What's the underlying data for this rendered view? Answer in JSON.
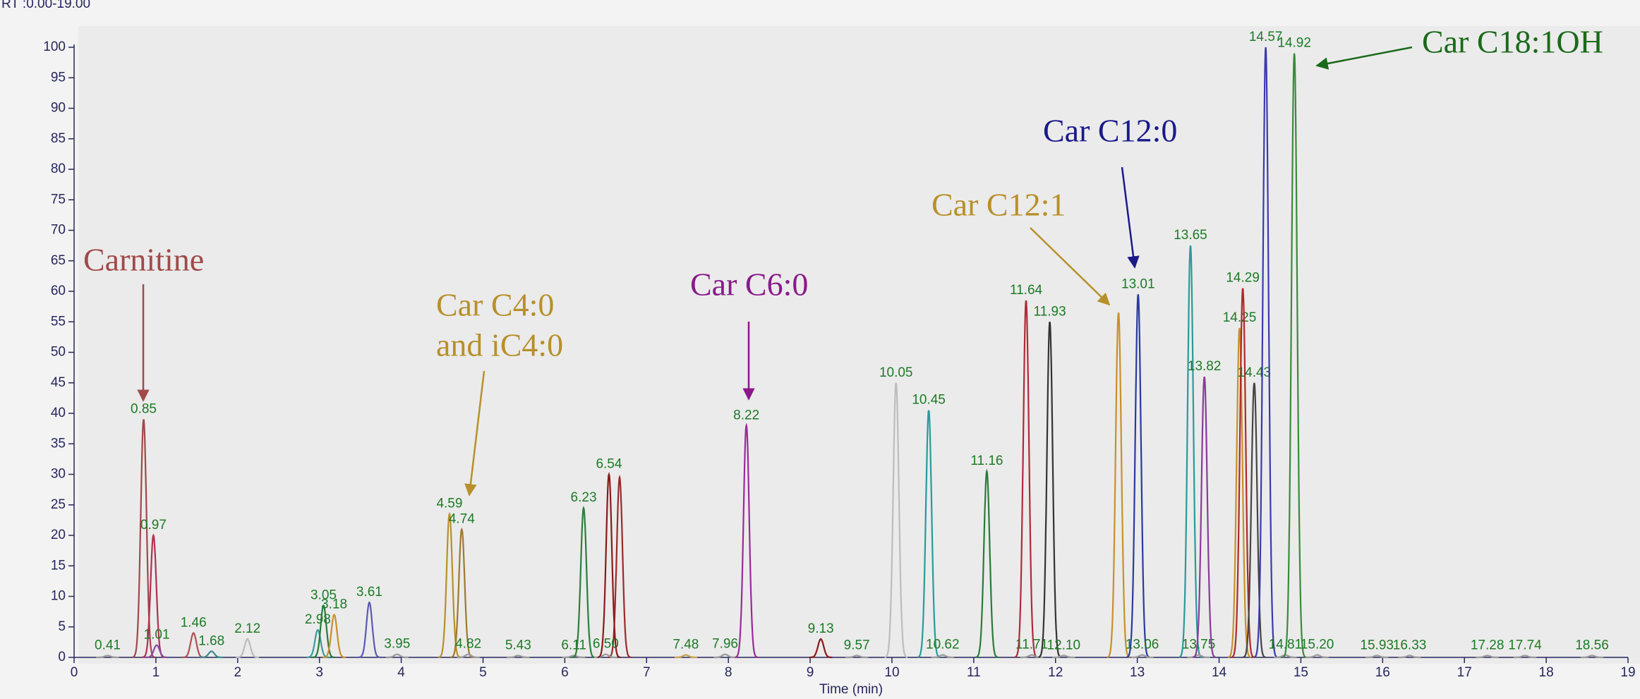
{
  "chart_data": {
    "type": "chromatogram",
    "range_label": "RT :0.00-19.00",
    "x_label": "Time (min)",
    "xlim": [
      0,
      19
    ],
    "xticks": [
      0,
      1,
      2,
      3,
      4,
      5,
      6,
      7,
      8,
      9,
      10,
      11,
      12,
      13,
      14,
      15,
      16,
      17,
      18,
      19
    ],
    "ylim": [
      0,
      100
    ],
    "yticks": [
      0,
      5,
      10,
      15,
      20,
      25,
      30,
      35,
      40,
      45,
      50,
      55,
      60,
      65,
      70,
      75,
      80,
      85,
      90,
      95,
      100
    ],
    "peaks": [
      {
        "rt": 0.41,
        "height": 0.3,
        "color": "#999999"
      },
      {
        "rt": 0.85,
        "height": 39,
        "color": "#a04848"
      },
      {
        "rt": 0.97,
        "height": 20,
        "color": "#b03050"
      },
      {
        "rt": 1.01,
        "height": 2,
        "color": "#8a4aa0"
      },
      {
        "rt": 1.46,
        "height": 4,
        "color": "#b05050"
      },
      {
        "rt": 1.68,
        "height": 1,
        "color": "#3a8a8a"
      },
      {
        "rt": 2.12,
        "height": 3,
        "color": "#bbbbbb"
      },
      {
        "rt": 2.98,
        "height": 4.5,
        "color": "#3a9a9a"
      },
      {
        "rt": 3.05,
        "height": 8.5,
        "color": "#2a7a3a"
      },
      {
        "rt": 3.18,
        "height": 7,
        "color": "#c8902a"
      },
      {
        "rt": 3.61,
        "height": 9,
        "color": "#5a5ab0"
      },
      {
        "rt": 3.95,
        "height": 0.5,
        "color": "#999999"
      },
      {
        "rt": 4.59,
        "height": 23.5,
        "color": "#b8902a"
      },
      {
        "rt": 4.74,
        "height": 21,
        "color": "#a07830"
      },
      {
        "rt": 4.82,
        "height": 0.5,
        "color": "#999999"
      },
      {
        "rt": 5.43,
        "height": 0.3,
        "color": "#999999"
      },
      {
        "rt": 6.11,
        "height": 0.3,
        "color": "#999999"
      },
      {
        "rt": 6.23,
        "height": 24.5,
        "color": "#2e7d3e"
      },
      {
        "rt": {
          "value": 6.5,
          "label": "6.50"
        },
        "height": 0.5,
        "color": "#999999"
      },
      {
        "rt": 6.54,
        "height": 30,
        "color": "#8a1a1a"
      },
      {
        "rt": 7.48,
        "height": 0.4,
        "color": "#c8a050"
      },
      {
        "rt": 7.96,
        "height": 0.5,
        "color": "#999999"
      },
      {
        "rt": 8.22,
        "height": 38,
        "color": "#9a2a9a"
      },
      {
        "rt": 9.13,
        "height": 3,
        "color": "#8a1a1a"
      },
      {
        "rt": 9.57,
        "height": 0.3,
        "color": "#999999"
      },
      {
        "rt": 10.05,
        "height": 45,
        "color": "#bdbdbd"
      },
      {
        "rt": 10.45,
        "height": 40.5,
        "color": "#2a9a9a"
      },
      {
        "rt": 10.62,
        "height": 0.4,
        "color": "#999999"
      },
      {
        "rt": 11.16,
        "height": 30.5,
        "color": "#2a7a3a"
      },
      {
        "rt": 11.64,
        "height": 58.5,
        "color": "#b02a3a"
      },
      {
        "rt": 11.71,
        "height": 0.4,
        "color": "#999999"
      },
      {
        "rt": 11.93,
        "height": 55,
        "color": "#333333"
      },
      {
        "rt": {
          "value": 12.1,
          "label": "12.10"
        },
        "height": 0.3,
        "color": "#999999"
      },
      {
        "rt": 13.01,
        "height": 59.5,
        "color": "#2a3aa0"
      },
      {
        "rt": 13.06,
        "height": 0.4,
        "color": "#999999"
      },
      {
        "rt": 13.65,
        "height": 67.5,
        "color": "#2a9a9a"
      },
      {
        "rt": 13.75,
        "height": 0.4,
        "color": "#999999"
      },
      {
        "rt": 13.82,
        "height": 46,
        "color": "#8a3a9a"
      },
      {
        "rt": 14.25,
        "height": 54,
        "color": "#c8902a"
      },
      {
        "rt": 14.29,
        "height": 60.5,
        "color": "#b02a2a"
      },
      {
        "rt": 14.43,
        "height": 45,
        "color": "#444444"
      },
      {
        "rt": 14.57,
        "height": 100,
        "color": "#3a3ab0"
      },
      {
        "rt": 14.81,
        "height": 0.4,
        "color": "#999999"
      },
      {
        "rt": 14.92,
        "height": 99,
        "color": "#3a8a3a"
      },
      {
        "rt": {
          "value": 15.2,
          "label": "15.20"
        },
        "height": 0.4,
        "color": "#999999"
      },
      {
        "rt": 15.93,
        "height": 0.3,
        "color": "#999999"
      },
      {
        "rt": 16.33,
        "height": 0.3,
        "color": "#999999"
      },
      {
        "rt": 17.28,
        "height": 0.3,
        "color": "#999999"
      },
      {
        "rt": 17.74,
        "height": 0.3,
        "color": "#999999"
      },
      {
        "rt": 18.56,
        "height": 0.3,
        "color": "#999999"
      }
    ],
    "unlabeled_peaks": [
      {
        "rt": 6.67,
        "height": 29.5,
        "color": "#9a2a2a"
      },
      {
        "rt": 12.77,
        "height": 56.5,
        "color": "#c8902a"
      }
    ],
    "annotations": [
      {
        "text": [
          "Carnitine"
        ],
        "color": "#a04a4a"
      },
      {
        "text": [
          "Car C4:0",
          "and iC4:0"
        ],
        "color": "#b8902a"
      },
      {
        "text": [
          "Car C6:0"
        ],
        "color": "#8a1a8a"
      },
      {
        "text": [
          "Car C12:1"
        ],
        "color": "#b8902a"
      },
      {
        "text": [
          "Car C12:0"
        ],
        "color": "#1a1a8a"
      },
      {
        "text": [
          "Car C18:1OH"
        ],
        "color": "#1a6a1a"
      }
    ]
  }
}
